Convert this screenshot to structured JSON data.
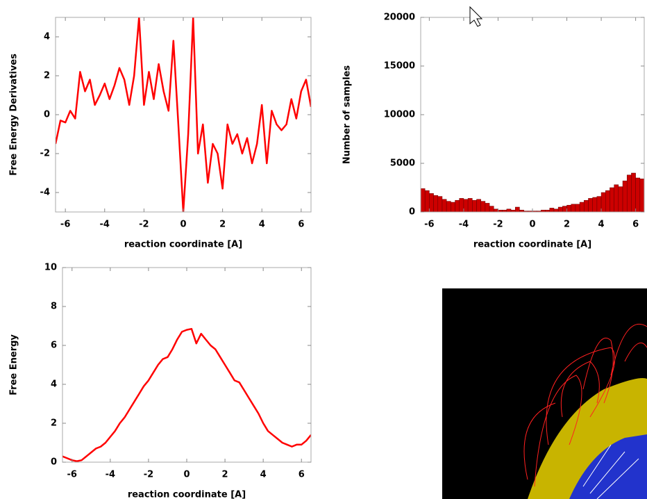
{
  "chart_data": [
    {
      "type": "line",
      "ylabel": "Free Energy Derivatives",
      "xlabel": "reaction coordinate [A]",
      "color": "#ff0000",
      "x": [
        -6.5,
        -6.25,
        -6,
        -5.75,
        -5.5,
        -5.25,
        -5,
        -4.75,
        -4.5,
        -4.25,
        -4,
        -3.75,
        -3.5,
        -3.25,
        -3,
        -2.75,
        -2.5,
        -2.25,
        -2,
        -1.75,
        -1.5,
        -1.25,
        -1,
        -0.75,
        -0.5,
        -0.25,
        0,
        0.25,
        0.5,
        0.75,
        1,
        1.25,
        1.5,
        1.75,
        2,
        2.25,
        2.5,
        2.75,
        3,
        3.25,
        3.5,
        3.75,
        4,
        4.25,
        4.5,
        4.75,
        5,
        5.25,
        5.5,
        5.75,
        6,
        6.25,
        6.5
      ],
      "values": [
        -1.5,
        -0.3,
        -0.4,
        0.2,
        -0.2,
        2.2,
        1.2,
        1.8,
        0.5,
        1.0,
        1.6,
        0.8,
        1.5,
        2.4,
        1.8,
        0.5,
        2.0,
        5.0,
        0.5,
        2.2,
        0.8,
        2.6,
        1.2,
        0.2,
        3.8,
        -0.5,
        -5,
        -1,
        5,
        -2,
        -0.5,
        -3.5,
        -1.5,
        -2.0,
        -3.8,
        -0.5,
        -1.5,
        -1.0,
        -2.0,
        -1.2,
        -2.5,
        -1.5,
        0.5,
        -2.5,
        0.2,
        -0.5,
        -0.8,
        -0.5,
        0.8,
        -0.2,
        1.2,
        1.8,
        0.4
      ],
      "xlim": [
        -6.5,
        6.5
      ],
      "xticks": [
        -6,
        -4,
        -2,
        0,
        2,
        4,
        6
      ],
      "ylim": [
        -5,
        5
      ],
      "yticks": [
        -4,
        -2,
        0,
        2,
        4
      ]
    },
    {
      "type": "histogram",
      "ylabel": "Number of samples",
      "xlabel": "reaction coordinate [A]",
      "color": "#cc0000",
      "bins": [
        -6.5,
        -6.25,
        -6,
        -5.75,
        -5.5,
        -5.25,
        -5,
        -4.75,
        -4.5,
        -4.25,
        -4,
        -3.75,
        -3.5,
        -3.25,
        -3,
        -2.75,
        -2.5,
        -2.25,
        -2,
        -1.75,
        -1.5,
        -1.25,
        -1,
        -0.75,
        -0.5,
        -0.25,
        0,
        0.25,
        0.5,
        0.75,
        1,
        1.25,
        1.5,
        1.75,
        2,
        2.25,
        2.5,
        2.75,
        3,
        3.25,
        3.5,
        3.75,
        4,
        4.25,
        4.5,
        4.75,
        5,
        5.25,
        5.5,
        5.75,
        6,
        6.25,
        6.5
      ],
      "values": [
        2400,
        2200,
        1900,
        1700,
        1600,
        1300,
        1100,
        1000,
        1200,
        1400,
        1300,
        1400,
        1200,
        1300,
        1100,
        900,
        600,
        300,
        200,
        200,
        300,
        200,
        500,
        200,
        100,
        100,
        100,
        100,
        200,
        200,
        400,
        300,
        500,
        600,
        700,
        800,
        800,
        1000,
        1200,
        1400,
        1500,
        1600,
        2000,
        2200,
        2500,
        2800,
        2600,
        3200,
        3800,
        4000,
        3500,
        3400
      ],
      "xlim": [
        -6.5,
        6.5
      ],
      "xticks": [
        -6,
        -4,
        -2,
        0,
        2,
        4,
        6
      ],
      "ylim": [
        0,
        20000
      ],
      "yticks": [
        0,
        5000,
        10000,
        15000,
        20000
      ]
    },
    {
      "type": "line",
      "ylabel": "Free Energy",
      "xlabel": "reaction coordinate [A]",
      "color": "#ff0000",
      "x": [
        -6.5,
        -6.25,
        -6,
        -5.75,
        -5.5,
        -5.25,
        -5,
        -4.75,
        -4.5,
        -4.25,
        -4,
        -3.75,
        -3.5,
        -3.25,
        -3,
        -2.75,
        -2.5,
        -2.25,
        -2,
        -1.75,
        -1.5,
        -1.25,
        -1,
        -0.75,
        -0.5,
        -0.25,
        0,
        0.25,
        0.5,
        0.75,
        1,
        1.25,
        1.5,
        1.75,
        2,
        2.25,
        2.5,
        2.75,
        3,
        3.25,
        3.5,
        3.75,
        4,
        4.25,
        4.5,
        4.75,
        5,
        5.25,
        5.5,
        5.75,
        6,
        6.25,
        6.5
      ],
      "values": [
        0.3,
        0.2,
        0.1,
        0.05,
        0.1,
        0.3,
        0.5,
        0.7,
        0.8,
        1.0,
        1.3,
        1.6,
        2.0,
        2.3,
        2.7,
        3.1,
        3.5,
        3.9,
        4.2,
        4.6,
        5.0,
        5.3,
        5.4,
        5.8,
        6.3,
        6.7,
        6.8,
        6.85,
        6.1,
        6.6,
        6.3,
        6.0,
        5.8,
        5.4,
        5.0,
        4.6,
        4.2,
        4.1,
        3.7,
        3.3,
        2.9,
        2.5,
        2.0,
        1.6,
        1.4,
        1.2,
        1.0,
        0.9,
        0.8,
        0.9,
        0.9,
        1.1,
        1.4
      ],
      "xlim": [
        -6.5,
        6.5
      ],
      "xticks": [
        -6,
        -4,
        -2,
        0,
        2,
        4,
        6
      ],
      "ylim": [
        0,
        10
      ],
      "yticks": [
        0,
        2,
        4,
        6,
        8,
        10
      ]
    }
  ]
}
